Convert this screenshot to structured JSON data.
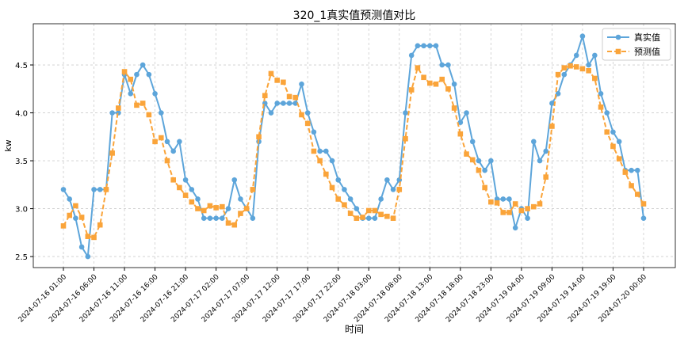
{
  "chart_data": {
    "type": "line",
    "title": "320_1真实值预测值对比",
    "xlabel": "时间",
    "ylabel": "kw",
    "ylim": [
      2.385,
      4.93
    ],
    "yticks": [
      2.5,
      3.0,
      3.5,
      4.0,
      4.5
    ],
    "ytick_labels": [
      "2.5",
      "3.0",
      "3.5",
      "4.0",
      "4.5"
    ],
    "xtick_labels": [
      "2024-07-16 01:00",
      "2024-07-16 06:00",
      "2024-07-16 11:00",
      "2024-07-16 16:00",
      "2024-07-16 21:00",
      "2024-07-17 02:00",
      "2024-07-17 07:00",
      "2024-07-17 12:00",
      "2024-07-17 17:00",
      "2024-07-17 22:00",
      "2024-07-18 03:00",
      "2024-07-18 08:00",
      "2024-07-18 13:00",
      "2024-07-18 18:00",
      "2024-07-18 23:00",
      "2024-07-19 04:00",
      "2024-07-19 09:00",
      "2024-07-19 14:00",
      "2024-07-19 19:00",
      "2024-07-20 00:00"
    ],
    "x_start": "2024-07-16 01:00",
    "x_step": "1 hour",
    "grid": true,
    "legend": "top-right",
    "series": [
      {
        "name": "真实值",
        "color": "#5DA5DA",
        "marker": "circle",
        "style": "solid",
        "values": [
          3.2,
          3.1,
          2.9,
          2.6,
          2.5,
          3.2,
          3.2,
          3.2,
          4.0,
          4.0,
          4.4,
          4.2,
          4.4,
          4.5,
          4.4,
          4.2,
          4.0,
          3.7,
          3.6,
          3.7,
          3.3,
          3.2,
          3.1,
          2.9,
          2.9,
          2.9,
          2.9,
          3.0,
          3.3,
          3.1,
          3.0,
          2.9,
          3.7,
          4.1,
          4.0,
          4.1,
          4.1,
          4.1,
          4.1,
          4.3,
          4.0,
          3.8,
          3.6,
          3.6,
          3.5,
          3.3,
          3.2,
          3.1,
          3.0,
          2.9,
          2.9,
          2.9,
          3.1,
          3.3,
          3.2,
          3.3,
          4.0,
          4.6,
          4.7,
          4.7,
          4.7,
          4.7,
          4.5,
          4.5,
          4.3,
          3.9,
          4.0,
          3.7,
          3.5,
          3.4,
          3.5,
          3.1,
          3.1,
          3.1,
          2.8,
          3.0,
          2.9,
          3.7,
          3.5,
          3.6,
          4.1,
          4.2,
          4.4,
          4.5,
          4.6,
          4.8,
          4.5,
          4.6,
          4.2,
          4.0,
          3.8,
          3.7,
          3.4,
          3.4,
          3.4,
          2.9
        ]
      },
      {
        "name": "预测值",
        "color": "#FAA43A",
        "marker": "square",
        "style": "dashed",
        "values": [
          2.82,
          2.93,
          3.03,
          2.91,
          2.71,
          2.7,
          2.83,
          3.2,
          3.58,
          4.05,
          4.43,
          4.35,
          4.08,
          4.1,
          3.98,
          3.7,
          3.74,
          3.5,
          3.3,
          3.22,
          3.14,
          3.07,
          3.0,
          2.98,
          3.03,
          3.01,
          3.02,
          2.85,
          2.83,
          2.95,
          3.0,
          3.2,
          3.75,
          4.18,
          4.41,
          4.34,
          4.32,
          4.17,
          4.16,
          3.98,
          3.89,
          3.6,
          3.5,
          3.36,
          3.22,
          3.1,
          3.04,
          2.95,
          2.9,
          2.91,
          2.98,
          2.98,
          2.94,
          2.92,
          2.9,
          3.2,
          3.73,
          4.24,
          4.47,
          4.37,
          4.31,
          4.3,
          4.35,
          4.25,
          4.05,
          3.78,
          3.57,
          3.51,
          3.4,
          3.22,
          3.07,
          3.06,
          2.96,
          2.96,
          3.05,
          2.98,
          3.0,
          3.02,
          3.05,
          3.33,
          3.86,
          4.4,
          4.47,
          4.49,
          4.48,
          4.46,
          4.44,
          4.36,
          4.06,
          3.8,
          3.65,
          3.52,
          3.38,
          3.24,
          3.15,
          3.05
        ]
      }
    ]
  }
}
